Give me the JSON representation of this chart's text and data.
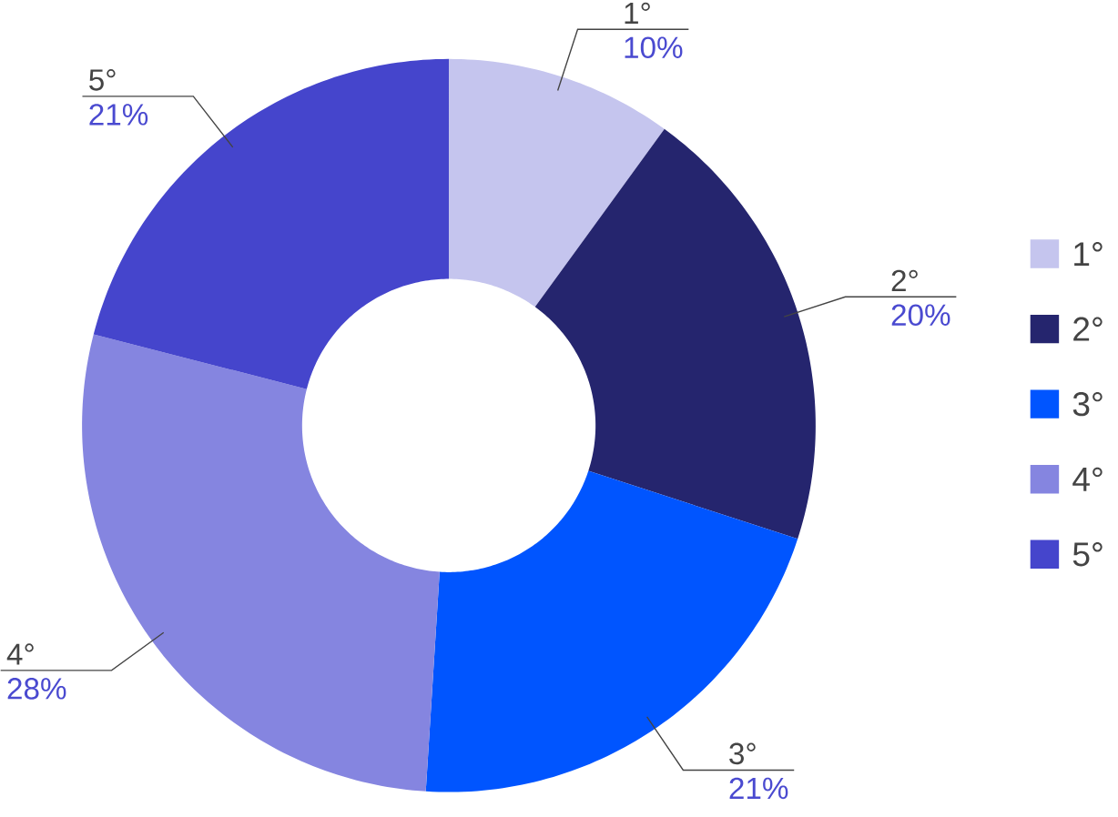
{
  "chart_data": {
    "type": "donut",
    "categories": [
      "1°",
      "2°",
      "3°",
      "4°",
      "5°"
    ],
    "values": [
      10,
      20,
      21,
      28,
      21
    ],
    "value_labels": [
      "10%",
      "20%",
      "21%",
      "28%",
      "21%"
    ],
    "colors": [
      "#c5c5ee",
      "#25256e",
      "#0055ff",
      "#8585e0",
      "#4545cc"
    ],
    "legend": "right"
  }
}
